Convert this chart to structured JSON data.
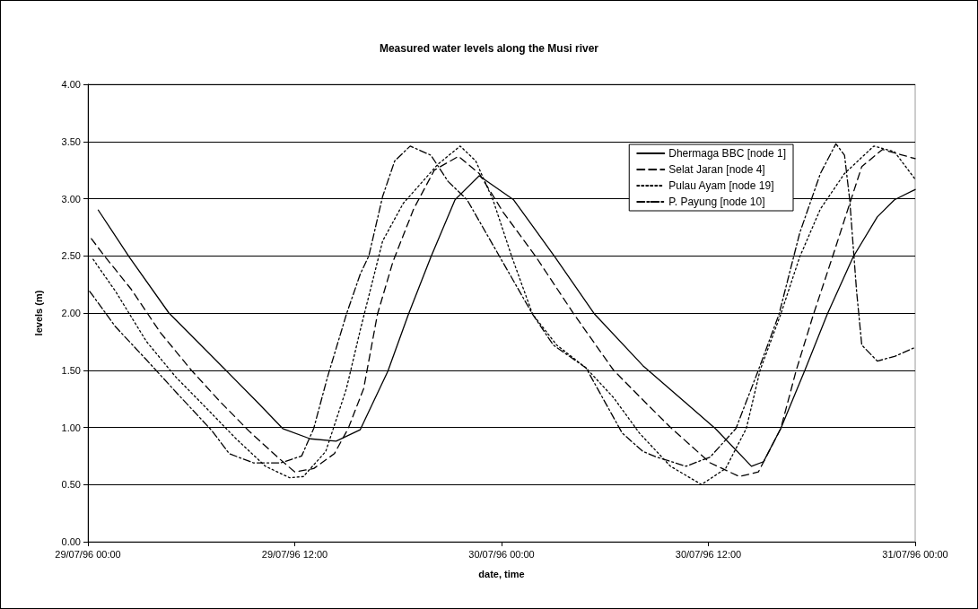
{
  "chart_data": {
    "type": "line",
    "title": "Measured water levels along the Musi river",
    "xlabel": "date, time",
    "ylabel": "levels (m)",
    "xlim": [
      "1996-07-29T00:00",
      "1996-07-31T00:00"
    ],
    "xticks": [
      {
        "value": "1996-07-29T00:00",
        "label": "29/07/96 00:00"
      },
      {
        "value": "1996-07-29T12:00",
        "label": "29/07/96 12:00"
      },
      {
        "value": "1996-07-30T00:00",
        "label": "30/07/96 00:00"
      },
      {
        "value": "1996-07-30T12:00",
        "label": "30/07/96 12:00"
      },
      {
        "value": "1996-07-31T00:00",
        "label": "31/07/96 00:00"
      }
    ],
    "ylim": [
      0,
      4
    ],
    "yticks": [
      {
        "value": 0,
        "label": "0.00"
      },
      {
        "value": 0.5,
        "label": "0.50"
      },
      {
        "value": 1,
        "label": "1.00"
      },
      {
        "value": 1.5,
        "label": "1.50"
      },
      {
        "value": 2,
        "label": "2.00"
      },
      {
        "value": 2.5,
        "label": "2.50"
      },
      {
        "value": 3,
        "label": "3.00"
      },
      {
        "value": 3.5,
        "label": "3.50"
      },
      {
        "value": 4,
        "label": "4.00"
      }
    ],
    "grid": "y",
    "legend": "top right",
    "marker": "none",
    "series": [
      {
        "name": "Dhermaga BBC [node 1]",
        "color": "#000000",
        "line_style": "solid",
        "x": [
          "1996-07-29T00:36",
          "1996-07-29T02:24",
          "1996-07-29T04:42",
          "1996-07-29T08:00",
          "1996-07-29T09:54",
          "1996-07-29T11:18",
          "1996-07-29T12:54",
          "1996-07-29T14:24",
          "1996-07-29T15:48",
          "1996-07-29T17:24",
          "1996-07-29T18:36",
          "1996-07-29T19:54",
          "1996-07-29T21:18",
          "1996-07-29T22:42",
          "1996-07-30T00:42",
          "1996-07-30T03:06",
          "1996-07-30T05:24",
          "1996-07-30T08:12",
          "1996-07-30T12:24",
          "1996-07-30T14:30",
          "1996-07-30T15:12",
          "1996-07-30T16:12",
          "1996-07-30T17:36",
          "1996-07-30T18:54",
          "1996-07-30T20:24",
          "1996-07-30T21:48",
          "1996-07-30T22:48",
          "1996-07-31T00:00"
        ],
        "values": [
          2.9,
          2.49,
          2.0,
          1.5,
          1.21,
          0.99,
          0.9,
          0.88,
          0.98,
          1.49,
          1.99,
          2.49,
          2.99,
          3.2,
          2.99,
          2.49,
          1.99,
          1.54,
          0.99,
          0.66,
          0.7,
          0.99,
          1.5,
          1.99,
          2.49,
          2.84,
          2.99,
          3.08
        ]
      },
      {
        "name": "Selat Jaran [node 4]",
        "color": "#000000",
        "line_style": "dashed",
        "x": [
          "1996-07-29T00:12",
          "1996-07-29T00:54",
          "1996-07-29T02:30",
          "1996-07-29T04:12",
          "1996-07-29T06:00",
          "1996-07-29T07:42",
          "1996-07-29T09:24",
          "1996-07-29T11:00",
          "1996-07-29T12:00",
          "1996-07-29T13:06",
          "1996-07-29T14:18",
          "1996-07-29T15:06",
          "1996-07-29T16:00",
          "1996-07-29T16:48",
          "1996-07-29T17:42",
          "1996-07-29T18:54",
          "1996-07-29T20:06",
          "1996-07-29T21:30",
          "1996-07-29T22:42",
          "1996-07-30T00:06",
          "1996-07-30T02:00",
          "1996-07-30T04:12",
          "1996-07-30T06:30",
          "1996-07-30T08:24",
          "1996-07-30T09:48",
          "1996-07-30T12:06",
          "1996-07-30T13:48",
          "1996-07-30T14:54",
          "1996-07-30T16:12",
          "1996-07-30T17:06",
          "1996-07-30T18:06",
          "1996-07-30T19:12",
          "1996-07-30T20:06",
          "1996-07-30T20:54",
          "1996-07-30T22:06",
          "1996-07-31T00:00"
        ],
        "values": [
          2.65,
          2.51,
          2.21,
          1.83,
          1.5,
          1.22,
          0.96,
          0.74,
          0.61,
          0.64,
          0.77,
          0.99,
          1.34,
          1.99,
          2.45,
          2.91,
          3.25,
          3.37,
          3.22,
          2.88,
          2.49,
          1.99,
          1.5,
          1.21,
          1.0,
          0.69,
          0.57,
          0.61,
          0.99,
          1.5,
          1.99,
          2.49,
          2.91,
          3.28,
          3.43,
          3.35
        ]
      },
      {
        "name": "Pulau Ayam [node 19]",
        "color": "#000000",
        "line_style": "dotted",
        "x": [
          "1996-07-29T00:18",
          "1996-07-29T01:36",
          "1996-07-29T03:24",
          "1996-07-29T05:06",
          "1996-07-29T06:48",
          "1996-07-29T08:36",
          "1996-07-29T10:18",
          "1996-07-29T11:42",
          "1996-07-29T12:30",
          "1996-07-29T13:48",
          "1996-07-29T15:00",
          "1996-07-29T15:48",
          "1996-07-29T17:06",
          "1996-07-29T18:18",
          "1996-07-29T20:18",
          "1996-07-29T21:36",
          "1996-07-29T22:30",
          "1996-07-29T23:30",
          "1996-07-30T00:36",
          "1996-07-30T01:48",
          "1996-07-30T03:12",
          "1996-07-30T04:54",
          "1996-07-30T06:30",
          "1996-07-30T08:00",
          "1996-07-30T09:48",
          "1996-07-30T11:36",
          "1996-07-30T13:00",
          "1996-07-30T14:12",
          "1996-07-30T15:00",
          "1996-07-30T16:12",
          "1996-07-30T17:18",
          "1996-07-30T18:30",
          "1996-07-30T19:54",
          "1996-07-30T21:36",
          "1996-07-30T22:48",
          "1996-07-31T00:00"
        ],
        "values": [
          2.47,
          2.19,
          1.75,
          1.44,
          1.18,
          0.9,
          0.66,
          0.56,
          0.57,
          0.79,
          1.34,
          1.85,
          2.63,
          2.96,
          3.3,
          3.46,
          3.33,
          2.99,
          2.49,
          1.99,
          1.72,
          1.52,
          1.26,
          0.95,
          0.66,
          0.5,
          0.64,
          0.99,
          1.5,
          1.99,
          2.49,
          2.91,
          3.22,
          3.46,
          3.41,
          3.17
        ]
      },
      {
        "name": "P. Payung [node 10]",
        "color": "#000000",
        "line_style": "dashdot",
        "x": [
          "1996-07-29T00:06",
          "1996-07-29T01:36",
          "1996-07-29T03:24",
          "1996-07-29T05:06",
          "1996-07-29T07:12",
          "1996-07-29T08:12",
          "1996-07-29T09:36",
          "1996-07-29T11:12",
          "1996-07-29T12:24",
          "1996-07-29T13:06",
          "1996-07-29T13:54",
          "1996-07-29T15:00",
          "1996-07-29T15:48",
          "1996-07-29T16:18",
          "1996-07-29T17:06",
          "1996-07-29T17:48",
          "1996-07-29T18:42",
          "1996-07-29T19:54",
          "1996-07-29T20:54",
          "1996-07-29T22:00",
          "1996-07-29T23:54",
          "1996-07-30T01:48",
          "1996-07-30T03:00",
          "1996-07-30T04:54",
          "1996-07-30T07:00",
          "1996-07-30T08:12",
          "1996-07-30T09:00",
          "1996-07-30T10:42",
          "1996-07-30T12:06",
          "1996-07-30T13:36",
          "1996-07-30T14:54",
          "1996-07-30T16:06",
          "1996-07-30T17:18",
          "1996-07-30T18:30",
          "1996-07-30T19:24",
          "1996-07-30T19:54",
          "1996-07-30T20:12",
          "1996-07-30T20:36",
          "1996-07-30T20:54",
          "1996-07-30T21:48",
          "1996-07-30T22:48",
          "1996-07-31T00:00"
        ],
        "values": [
          2.19,
          1.88,
          1.59,
          1.31,
          0.97,
          0.77,
          0.69,
          0.69,
          0.75,
          0.99,
          1.44,
          1.99,
          2.34,
          2.5,
          3.02,
          3.33,
          3.46,
          3.38,
          3.15,
          2.99,
          2.49,
          1.99,
          1.72,
          1.52,
          0.95,
          0.79,
          0.74,
          0.66,
          0.74,
          0.99,
          1.5,
          1.99,
          2.7,
          3.22,
          3.48,
          3.38,
          2.99,
          2.19,
          1.72,
          1.58,
          1.62,
          1.7
        ]
      }
    ]
  }
}
